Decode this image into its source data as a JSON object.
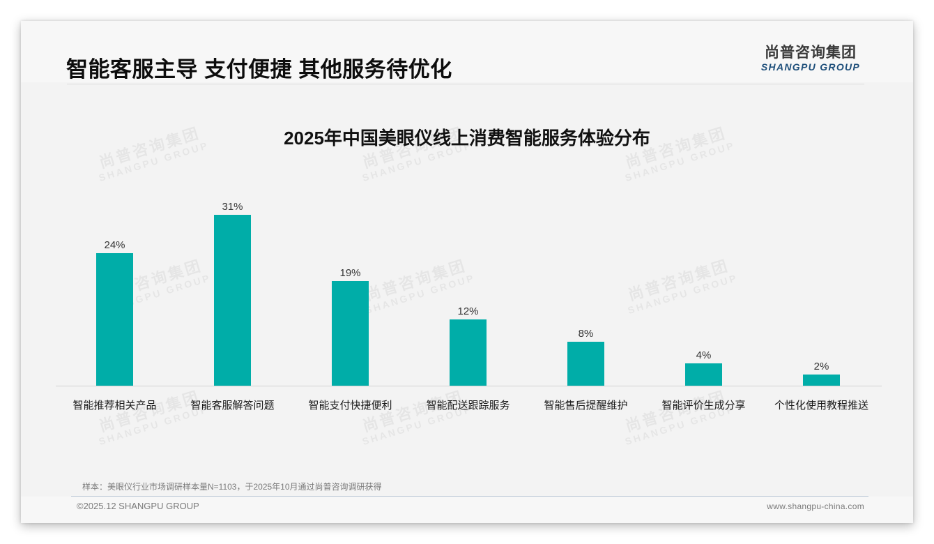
{
  "header": {
    "title": "智能客服主导 支付便捷 其他服务待优化",
    "logo_cn": "尚普咨询集团",
    "logo_en": "SHANGPU GROUP"
  },
  "watermark": {
    "cn": "尚普咨询集团",
    "en": "SHANGPU GROUP"
  },
  "colors": {
    "bar": "#00ada8",
    "logo_en": "#1d4e7a",
    "background": "#f3f3f3"
  },
  "chart_data": {
    "type": "bar",
    "title": "2025年中国美眼仪线上消费智能服务体验分布",
    "categories": [
      "智能推荐相关产品",
      "智能客服解答问题",
      "智能支付快捷便利",
      "智能配送跟踪服务",
      "智能售后提醒维护",
      "智能评价生成分享",
      "个性化使用教程推送"
    ],
    "values": [
      24,
      31,
      19,
      12,
      8,
      4,
      2
    ],
    "value_labels": [
      "24%",
      "31%",
      "19%",
      "12%",
      "8%",
      "4%",
      "2%"
    ],
    "unit": "%",
    "xlabel": "",
    "ylabel": "",
    "ylim": [
      0,
      35
    ],
    "grid": false,
    "legend": null,
    "color": "#00ada8"
  },
  "footer": {
    "source_note": "样本：美眼仪行业市场调研样本量N=1103，于2025年10月通过尚普咨询调研获得",
    "copyright": "©2025.12 SHANGPU GROUP",
    "website": "www.shangpu-china.com"
  }
}
